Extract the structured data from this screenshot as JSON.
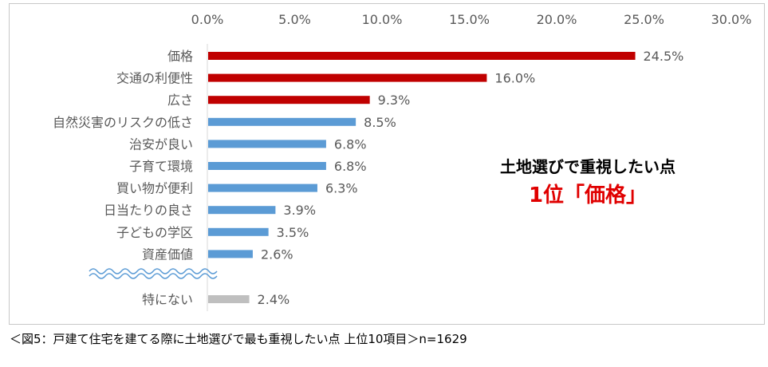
{
  "chart_data": {
    "type": "bar",
    "orientation": "horizontal",
    "categories": [
      "価格",
      "交通の利便性",
      "広さ",
      "自然災害のリスクの低さ",
      "治安が良い",
      "子育て環境",
      "買い物が便利",
      "日当たりの良さ",
      "子どもの学区",
      "資産価値",
      "特にない"
    ],
    "values": [
      24.5,
      16.0,
      9.3,
      8.5,
      6.8,
      6.8,
      6.3,
      3.9,
      3.5,
      2.6,
      2.4
    ],
    "value_labels": [
      "24.5%",
      "16.0%",
      "9.3%",
      "8.5%",
      "6.8%",
      "6.8%",
      "6.3%",
      "3.9%",
      "3.5%",
      "2.6%",
      "2.4%"
    ],
    "bar_colors": [
      "#c00000",
      "#c00000",
      "#c00000",
      "#5b9bd5",
      "#5b9bd5",
      "#5b9bd5",
      "#5b9bd5",
      "#5b9bd5",
      "#5b9bd5",
      "#5b9bd5",
      "#bfbfbf"
    ],
    "xlim": [
      0,
      30
    ],
    "xticks": [
      0,
      5,
      10,
      15,
      20,
      25,
      30
    ],
    "xtick_labels": [
      "0.0%",
      "5.0%",
      "10.0%",
      "15.0%",
      "20.0%",
      "25.0%",
      "30.0%"
    ],
    "axis_position": "top",
    "grid": false,
    "axis_break_before_last": true,
    "title": "",
    "xlabel": "",
    "ylabel": ""
  },
  "callout": {
    "line1": "土地選びで重視したい点",
    "line2": "1位「価格」",
    "line2_color": "#e00000"
  },
  "caption": "＜図5：戸建て住宅を建てる際に土地選びで最も重視したい点 上位10項目＞n=1629"
}
